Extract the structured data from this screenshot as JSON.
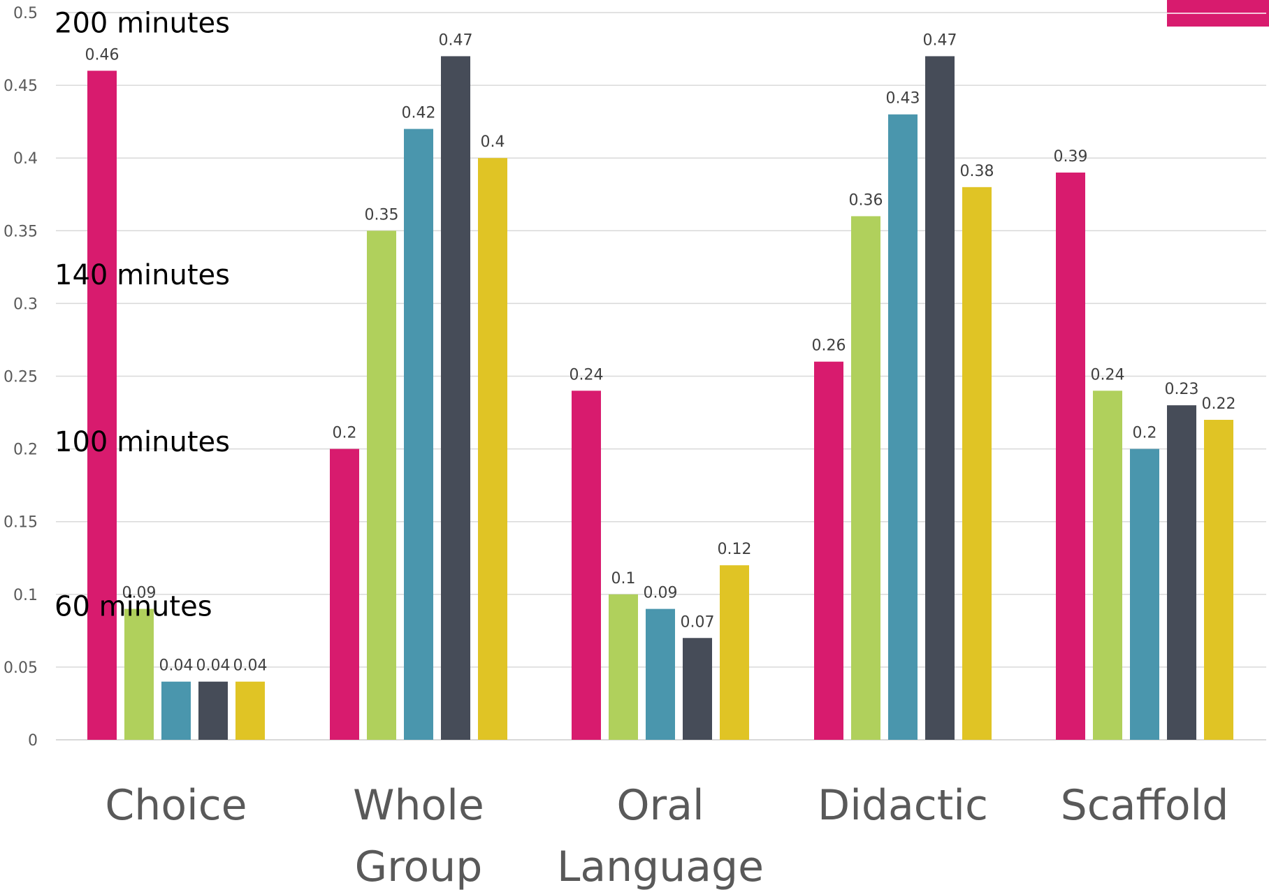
{
  "chart_data": {
    "type": "bar",
    "categories": [
      [
        "Choice"
      ],
      [
        "Whole",
        "Group"
      ],
      [
        "Oral",
        "Language"
      ],
      [
        "Didactic"
      ],
      [
        "Scaffold"
      ]
    ],
    "series": [
      {
        "color": "#d81b6e",
        "values": [
          0.46,
          0.2,
          0.24,
          0.26,
          0.39
        ]
      },
      {
        "color": "#b0d05c",
        "values": [
          0.09,
          0.35,
          0.1,
          0.36,
          0.24
        ]
      },
      {
        "color": "#4a96ad",
        "values": [
          0.04,
          0.42,
          0.09,
          0.43,
          0.2
        ]
      },
      {
        "color": "#464c58",
        "values": [
          0.04,
          0.47,
          0.07,
          0.47,
          0.23
        ]
      },
      {
        "color": "#e0c425",
        "values": [
          0.04,
          0.4,
          0.12,
          0.38,
          0.22
        ]
      }
    ],
    "data_labels": [
      [
        "0.46",
        "0.2",
        "0.24",
        "0.26",
        "0.39"
      ],
      [
        "0.09",
        "0.35",
        "0.1",
        "0.36",
        "0.24"
      ],
      [
        "0.04",
        "0.42",
        "0.09",
        "0.43",
        "0.2"
      ],
      [
        "0.04",
        "0.47",
        "0.07",
        "0.47",
        "0.23"
      ],
      [
        "0.04",
        "0.4",
        "0.12",
        "0.38",
        "0.22"
      ]
    ],
    "yticks": [
      "0",
      "0.05",
      "0.1",
      "0.15",
      "0.2",
      "0.25",
      "0.3",
      "0.35",
      "0.4",
      "0.45",
      "0.5"
    ],
    "ylim": [
      0,
      0.5
    ],
    "grid": true,
    "legend_swatch_color": "#d81b6e",
    "annotations": [
      {
        "text": "200 minutes",
        "y": 0.493
      },
      {
        "text": "140 minutes",
        "y": 0.32
      },
      {
        "text": "100 minutes",
        "y": 0.205
      },
      {
        "text": "60 minutes",
        "y": 0.092
      }
    ],
    "title": "",
    "xlabel": "",
    "ylabel": ""
  }
}
